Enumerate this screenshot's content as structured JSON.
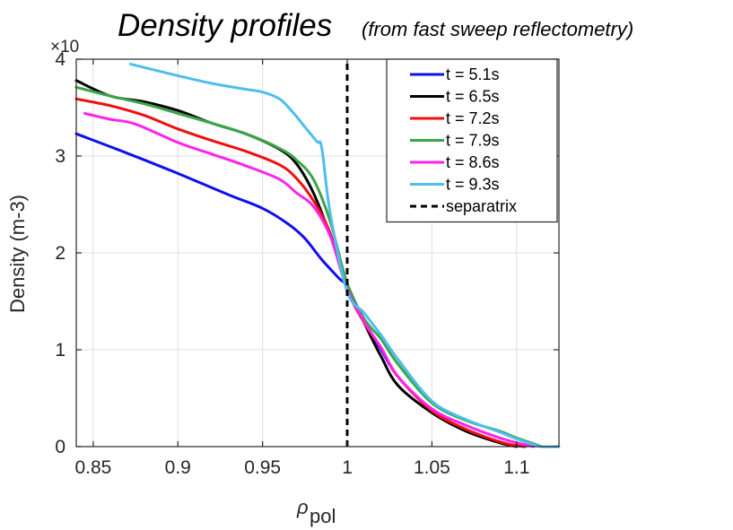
{
  "chart_data": {
    "type": "line",
    "title": "Density profiles",
    "subtitle": "(from fast sweep reflectometry)",
    "xlabel": "ρ",
    "xlabel_sub": "pol",
    "ylabel": "Density (m-3)",
    "y_exponent_label": "×10",
    "xlim": [
      0.84,
      1.125
    ],
    "ylim": [
      0,
      4
    ],
    "xticks": [
      0.85,
      0.9,
      0.95,
      1,
      1.05,
      1.1
    ],
    "xtick_labels": [
      "0.85",
      "0.9",
      "0.95",
      "1",
      "1.05",
      "1.1"
    ],
    "yticks": [
      0,
      1,
      2,
      3,
      4
    ],
    "ytick_labels": [
      "0",
      "1",
      "2",
      "3",
      "4"
    ],
    "grid": true,
    "legend_position": "top-right",
    "series": [
      {
        "name": "t = 5.1s",
        "color": "#1010ee",
        "x": [
          0.84,
          0.87,
          0.9,
          0.93,
          0.95,
          0.965,
          0.975,
          0.985,
          0.995,
          1.0,
          1.01,
          1.02,
          1.03,
          1.05,
          1.07,
          1.09,
          1.1,
          1.105
        ],
        "y": [
          3.23,
          3.03,
          2.82,
          2.6,
          2.46,
          2.3,
          2.15,
          1.93,
          1.74,
          1.65,
          1.3,
          1.0,
          0.72,
          0.38,
          0.17,
          0.04,
          0.01,
          0.0
        ]
      },
      {
        "name": "t = 6.5s",
        "color": "#000000",
        "x": [
          0.84,
          0.86,
          0.88,
          0.9,
          0.92,
          0.94,
          0.96,
          0.97,
          0.98,
          0.99,
          1.0,
          1.01,
          1.02,
          1.03,
          1.05,
          1.07,
          1.09,
          1.1
        ],
        "y": [
          3.78,
          3.62,
          3.56,
          3.47,
          3.34,
          3.23,
          3.07,
          2.92,
          2.62,
          2.18,
          1.68,
          1.28,
          0.93,
          0.63,
          0.35,
          0.16,
          0.04,
          0.0
        ]
      },
      {
        "name": "t = 7.2s",
        "color": "#ee1010",
        "x": [
          0.84,
          0.86,
          0.88,
          0.9,
          0.92,
          0.94,
          0.96,
          0.97,
          0.98,
          0.99,
          1.0,
          1.01,
          1.02,
          1.03,
          1.05,
          1.07,
          1.09,
          1.1,
          1.105
        ],
        "y": [
          3.59,
          3.52,
          3.42,
          3.28,
          3.16,
          3.05,
          2.91,
          2.77,
          2.54,
          2.2,
          1.62,
          1.28,
          1.02,
          0.72,
          0.37,
          0.18,
          0.05,
          0.01,
          0.0
        ]
      },
      {
        "name": "t = 7.9s",
        "color": "#3aa64a",
        "x": [
          0.84,
          0.86,
          0.88,
          0.9,
          0.92,
          0.94,
          0.96,
          0.97,
          0.98,
          0.99,
          1.0,
          1.01,
          1.02,
          1.03,
          1.05,
          1.07,
          1.09,
          1.1,
          1.11,
          1.115
        ],
        "y": [
          3.71,
          3.62,
          3.54,
          3.44,
          3.34,
          3.23,
          3.08,
          2.96,
          2.76,
          2.32,
          1.68,
          1.32,
          1.11,
          0.85,
          0.45,
          0.27,
          0.16,
          0.09,
          0.03,
          0.0
        ]
      },
      {
        "name": "t = 8.6s",
        "color": "#ff22ee",
        "x": [
          0.845,
          0.86,
          0.875,
          0.9,
          0.92,
          0.94,
          0.96,
          0.97,
          0.98,
          0.99,
          1.0,
          1.01,
          1.02,
          1.03,
          1.05,
          1.07,
          1.09,
          1.1,
          1.11
        ],
        "y": [
          3.44,
          3.38,
          3.33,
          3.14,
          3.02,
          2.9,
          2.76,
          2.62,
          2.48,
          2.17,
          1.62,
          1.29,
          1.02,
          0.72,
          0.39,
          0.22,
          0.09,
          0.04,
          0.0
        ]
      },
      {
        "name": "t = 9.3s",
        "color": "#4dbeee",
        "x": [
          0.872,
          0.9,
          0.92,
          0.94,
          0.95,
          0.96,
          0.968,
          0.975,
          0.982,
          0.985,
          0.99,
          1.0,
          1.01,
          1.02,
          1.03,
          1.05,
          1.07,
          1.09,
          1.1,
          1.11,
          1.115,
          1.125
        ],
        "y": [
          3.95,
          3.83,
          3.75,
          3.69,
          3.66,
          3.59,
          3.45,
          3.3,
          3.15,
          3.08,
          2.4,
          1.6,
          1.38,
          1.15,
          0.9,
          0.47,
          0.28,
          0.15,
          0.08,
          0.02,
          0.0,
          0.0
        ]
      },
      {
        "name": "separatrix",
        "color": "#000000",
        "style": "dashed",
        "x": [
          1.0,
          1.0
        ],
        "y": [
          0,
          4
        ]
      }
    ]
  }
}
